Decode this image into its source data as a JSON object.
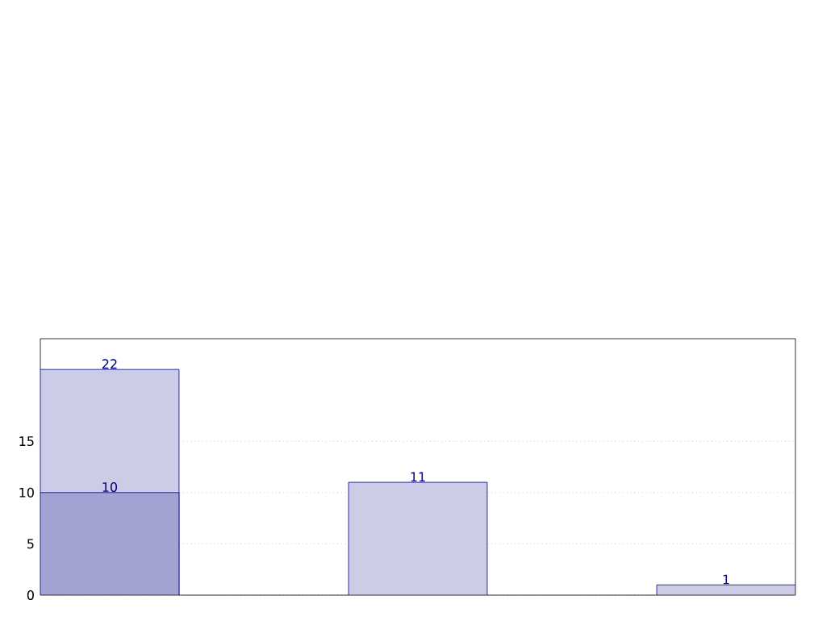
{
  "chart_data": {
    "type": "bar",
    "categories": [
      null,
      null,
      null
    ],
    "series": [
      {
        "color": "#ccccE6",
        "values": [
          22,
          11,
          1
        ]
      },
      {
        "color": "#a3a3d3",
        "values": [
          10,
          null,
          null
        ]
      }
    ],
    "ylim": [
      0,
      25
    ],
    "yticks": [
      0,
      5,
      10,
      15
    ],
    "grid": "y",
    "data_labels": true,
    "tick_labels": "y"
  }
}
